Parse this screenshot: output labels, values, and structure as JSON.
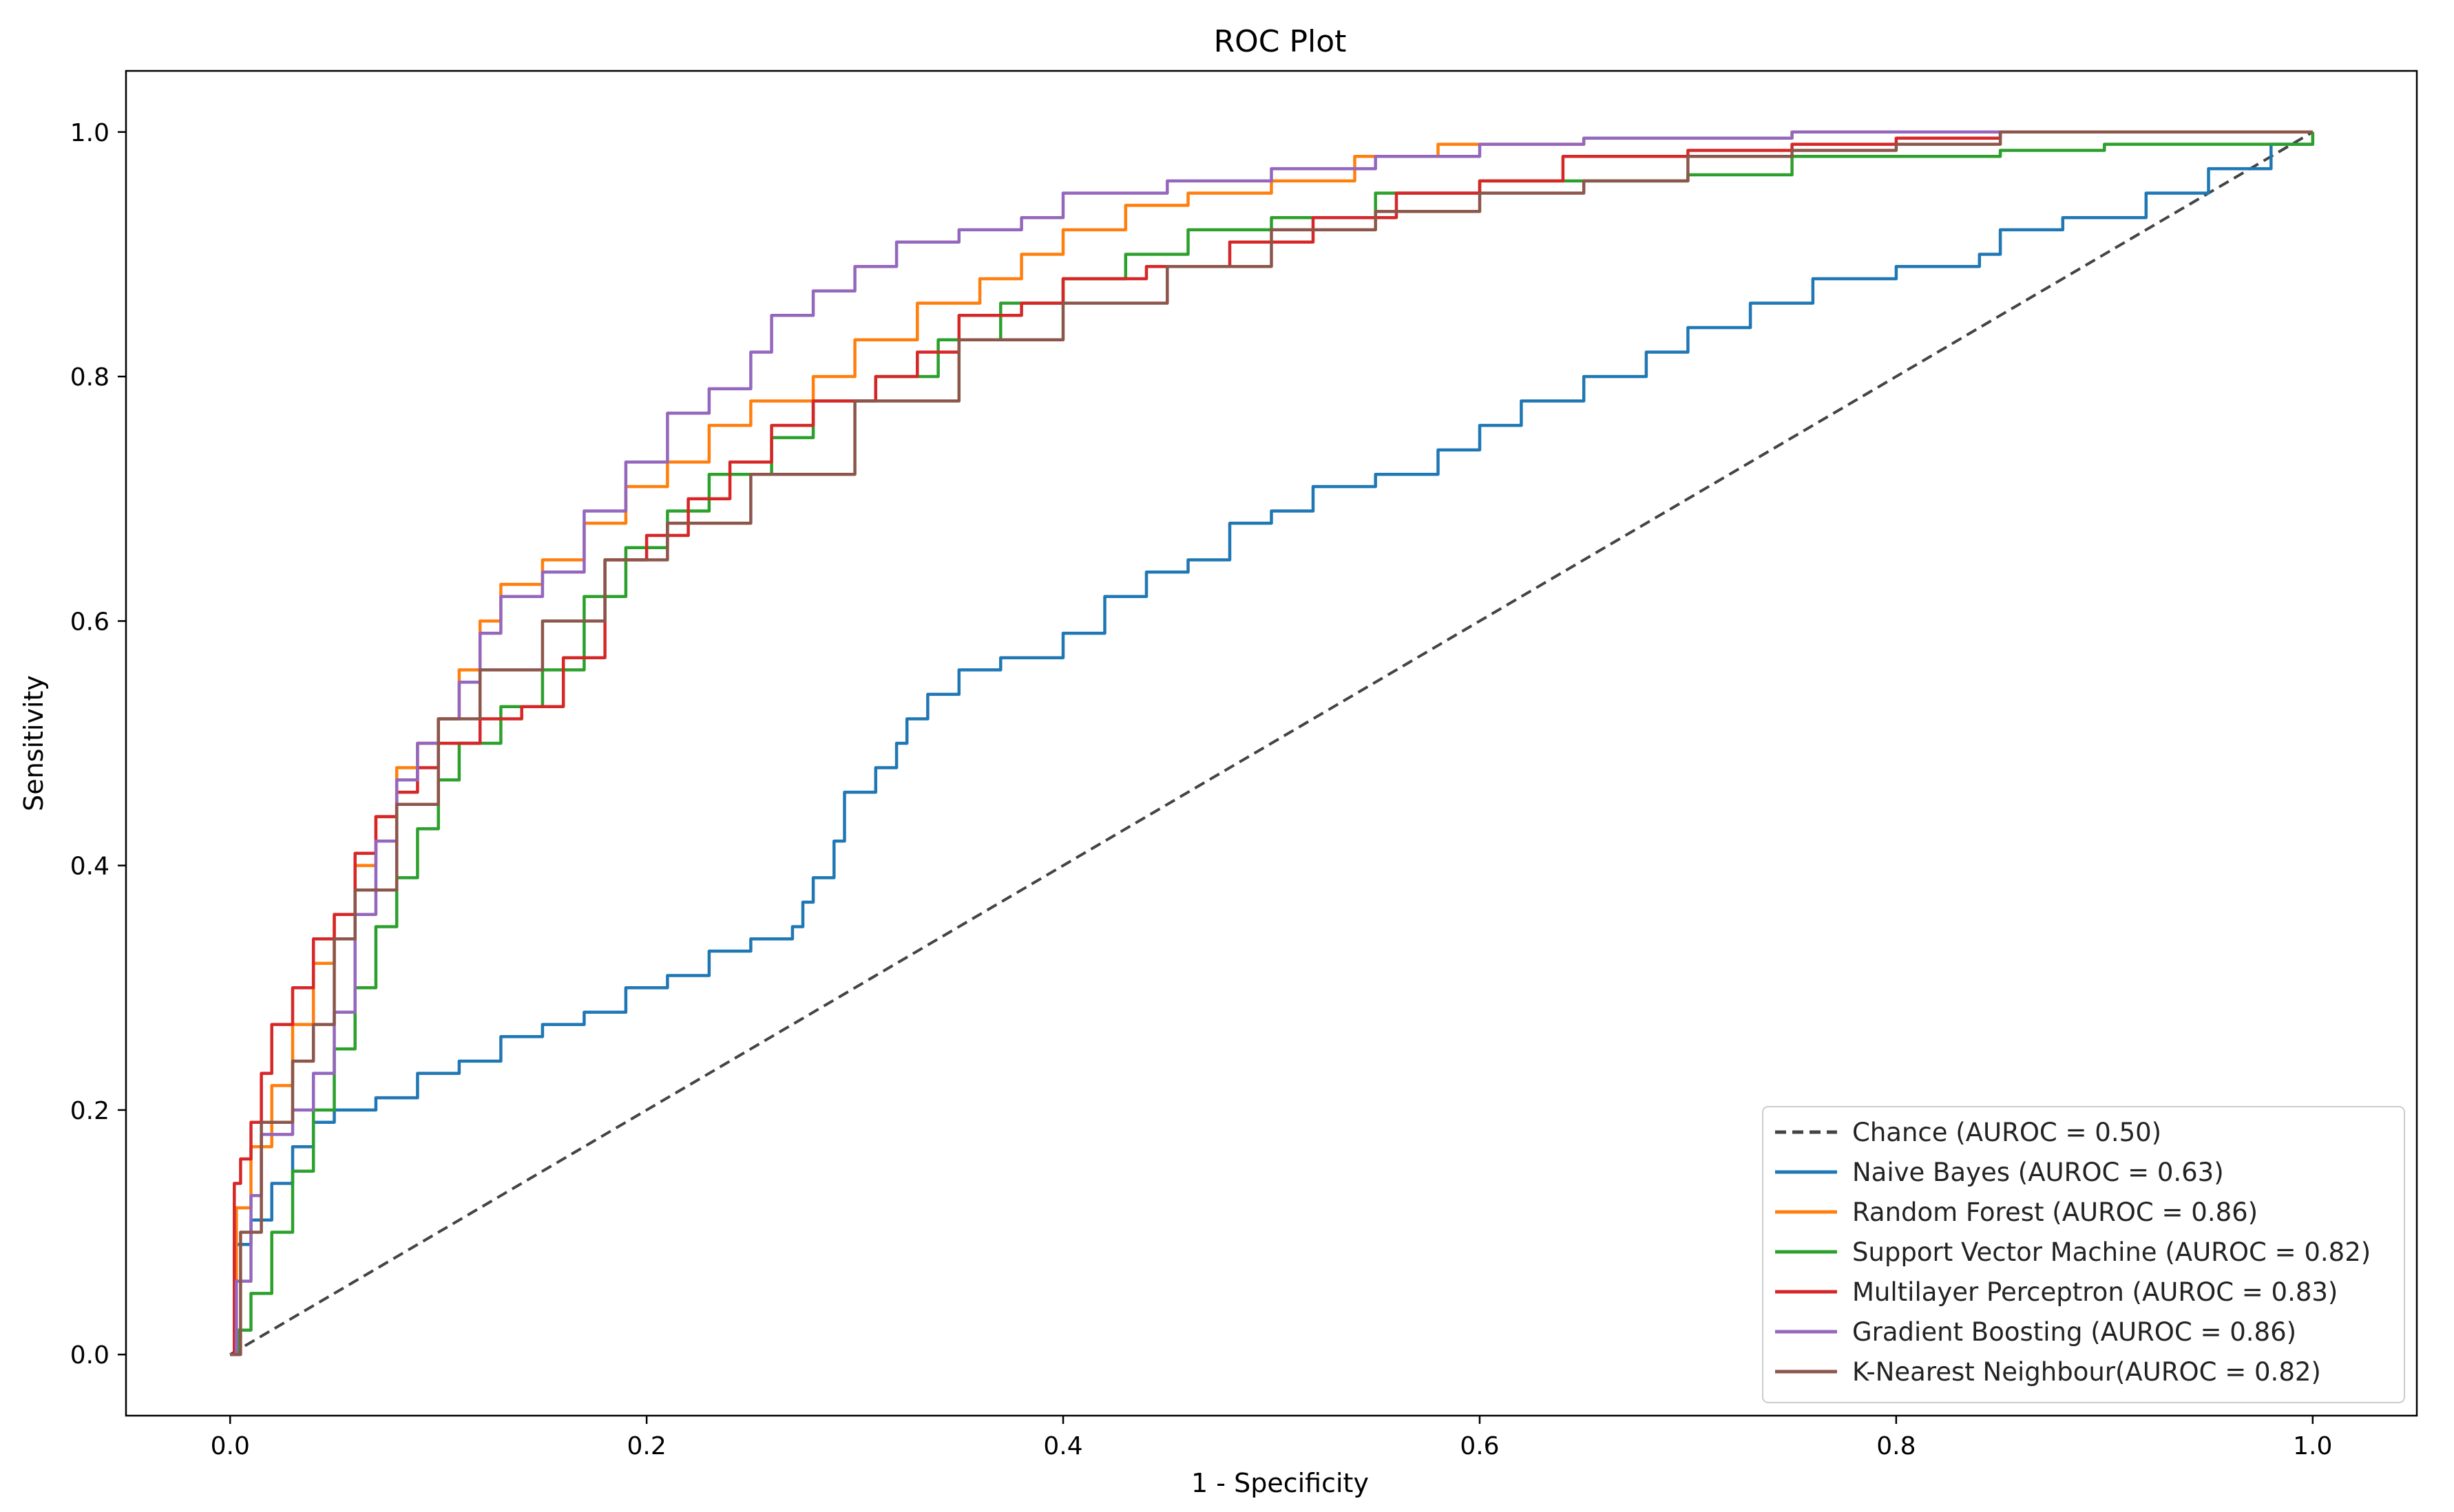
{
  "chart_data": {
    "type": "line",
    "title": "ROC Plot",
    "xlabel": "1 - Specificity",
    "ylabel": "Sensitivity",
    "xlim": [
      -0.05,
      1.05
    ],
    "ylim": [
      -0.05,
      1.05
    ],
    "xticks": [
      0.0,
      0.2,
      0.4,
      0.6,
      0.8,
      1.0
    ],
    "yticks": [
      0.0,
      0.2,
      0.4,
      0.6,
      0.8,
      1.0
    ],
    "xtick_labels": [
      "0.0",
      "0.2",
      "0.4",
      "0.6",
      "0.8",
      "1.0"
    ],
    "ytick_labels": [
      "0.0",
      "0.2",
      "0.4",
      "0.6",
      "0.8",
      "1.0"
    ],
    "legend_position": "lower-right",
    "grid": false,
    "series": [
      {
        "name": "Chance (AUROC = 0.50)",
        "color": "#444444",
        "dashed": true,
        "points": [
          [
            0,
            0
          ],
          [
            1,
            1
          ]
        ]
      },
      {
        "name": "Naive Bayes (AUROC = 0.63)",
        "color": "#1f77b4",
        "dashed": false,
        "points": [
          [
            0,
            0
          ],
          [
            0.002,
            0.09
          ],
          [
            0.01,
            0.11
          ],
          [
            0.02,
            0.14
          ],
          [
            0.03,
            0.17
          ],
          [
            0.04,
            0.19
          ],
          [
            0.05,
            0.2
          ],
          [
            0.07,
            0.21
          ],
          [
            0.09,
            0.23
          ],
          [
            0.11,
            0.24
          ],
          [
            0.13,
            0.26
          ],
          [
            0.15,
            0.27
          ],
          [
            0.17,
            0.28
          ],
          [
            0.19,
            0.3
          ],
          [
            0.21,
            0.31
          ],
          [
            0.23,
            0.33
          ],
          [
            0.25,
            0.34
          ],
          [
            0.27,
            0.35
          ],
          [
            0.275,
            0.37
          ],
          [
            0.28,
            0.39
          ],
          [
            0.29,
            0.42
          ],
          [
            0.295,
            0.46
          ],
          [
            0.31,
            0.48
          ],
          [
            0.32,
            0.5
          ],
          [
            0.325,
            0.52
          ],
          [
            0.335,
            0.54
          ],
          [
            0.35,
            0.56
          ],
          [
            0.37,
            0.57
          ],
          [
            0.4,
            0.59
          ],
          [
            0.42,
            0.62
          ],
          [
            0.44,
            0.64
          ],
          [
            0.46,
            0.65
          ],
          [
            0.48,
            0.68
          ],
          [
            0.5,
            0.69
          ],
          [
            0.52,
            0.71
          ],
          [
            0.55,
            0.72
          ],
          [
            0.58,
            0.74
          ],
          [
            0.6,
            0.76
          ],
          [
            0.62,
            0.78
          ],
          [
            0.65,
            0.8
          ],
          [
            0.68,
            0.82
          ],
          [
            0.7,
            0.84
          ],
          [
            0.73,
            0.86
          ],
          [
            0.76,
            0.88
          ],
          [
            0.8,
            0.89
          ],
          [
            0.84,
            0.9
          ],
          [
            0.85,
            0.92
          ],
          [
            0.88,
            0.93
          ],
          [
            0.92,
            0.95
          ],
          [
            0.95,
            0.97
          ],
          [
            0.98,
            0.99
          ],
          [
            1,
            1
          ]
        ]
      },
      {
        "name": "Random Forest (AUROC = 0.86)",
        "color": "#ff7f0e",
        "dashed": false,
        "points": [
          [
            0,
            0
          ],
          [
            0.003,
            0.12
          ],
          [
            0.01,
            0.17
          ],
          [
            0.02,
            0.22
          ],
          [
            0.03,
            0.27
          ],
          [
            0.04,
            0.32
          ],
          [
            0.05,
            0.36
          ],
          [
            0.06,
            0.4
          ],
          [
            0.07,
            0.44
          ],
          [
            0.08,
            0.48
          ],
          [
            0.09,
            0.5
          ],
          [
            0.1,
            0.52
          ],
          [
            0.11,
            0.56
          ],
          [
            0.12,
            0.6
          ],
          [
            0.13,
            0.63
          ],
          [
            0.15,
            0.65
          ],
          [
            0.17,
            0.68
          ],
          [
            0.19,
            0.71
          ],
          [
            0.21,
            0.73
          ],
          [
            0.23,
            0.76
          ],
          [
            0.25,
            0.78
          ],
          [
            0.28,
            0.8
          ],
          [
            0.3,
            0.83
          ],
          [
            0.33,
            0.86
          ],
          [
            0.36,
            0.88
          ],
          [
            0.38,
            0.9
          ],
          [
            0.4,
            0.92
          ],
          [
            0.43,
            0.94
          ],
          [
            0.46,
            0.95
          ],
          [
            0.5,
            0.96
          ],
          [
            0.54,
            0.98
          ],
          [
            0.58,
            0.99
          ],
          [
            0.65,
            0.995
          ],
          [
            0.75,
            1
          ],
          [
            1,
            1
          ]
        ]
      },
      {
        "name": "Support Vector Machine (AUROC = 0.82)",
        "color": "#2ca02c",
        "dashed": false,
        "points": [
          [
            0,
            0
          ],
          [
            0.004,
            0.02
          ],
          [
            0.01,
            0.05
          ],
          [
            0.02,
            0.1
          ],
          [
            0.03,
            0.15
          ],
          [
            0.04,
            0.2
          ],
          [
            0.05,
            0.25
          ],
          [
            0.06,
            0.3
          ],
          [
            0.07,
            0.35
          ],
          [
            0.08,
            0.39
          ],
          [
            0.09,
            0.43
          ],
          [
            0.1,
            0.47
          ],
          [
            0.11,
            0.5
          ],
          [
            0.13,
            0.53
          ],
          [
            0.15,
            0.56
          ],
          [
            0.17,
            0.62
          ],
          [
            0.19,
            0.66
          ],
          [
            0.21,
            0.69
          ],
          [
            0.23,
            0.72
          ],
          [
            0.26,
            0.75
          ],
          [
            0.28,
            0.78
          ],
          [
            0.31,
            0.8
          ],
          [
            0.34,
            0.83
          ],
          [
            0.37,
            0.86
          ],
          [
            0.4,
            0.88
          ],
          [
            0.43,
            0.9
          ],
          [
            0.46,
            0.92
          ],
          [
            0.5,
            0.93
          ],
          [
            0.55,
            0.95
          ],
          [
            0.6,
            0.96
          ],
          [
            0.7,
            0.965
          ],
          [
            0.75,
            0.98
          ],
          [
            0.8,
            0.98
          ],
          [
            0.85,
            0.985
          ],
          [
            0.9,
            0.99
          ],
          [
            1,
            1
          ]
        ]
      },
      {
        "name": "Multilayer Perceptron (AUROC = 0.83)",
        "color": "#d62728",
        "dashed": false,
        "points": [
          [
            0,
            0
          ],
          [
            0.002,
            0.14
          ],
          [
            0.005,
            0.16
          ],
          [
            0.01,
            0.19
          ],
          [
            0.015,
            0.23
          ],
          [
            0.02,
            0.27
          ],
          [
            0.03,
            0.3
          ],
          [
            0.04,
            0.34
          ],
          [
            0.05,
            0.36
          ],
          [
            0.06,
            0.41
          ],
          [
            0.07,
            0.44
          ],
          [
            0.08,
            0.46
          ],
          [
            0.09,
            0.48
          ],
          [
            0.1,
            0.5
          ],
          [
            0.12,
            0.52
          ],
          [
            0.14,
            0.53
          ],
          [
            0.16,
            0.57
          ],
          [
            0.18,
            0.65
          ],
          [
            0.2,
            0.67
          ],
          [
            0.22,
            0.7
          ],
          [
            0.24,
            0.73
          ],
          [
            0.26,
            0.76
          ],
          [
            0.28,
            0.78
          ],
          [
            0.31,
            0.8
          ],
          [
            0.33,
            0.82
          ],
          [
            0.35,
            0.85
          ],
          [
            0.38,
            0.86
          ],
          [
            0.4,
            0.88
          ],
          [
            0.44,
            0.89
          ],
          [
            0.48,
            0.91
          ],
          [
            0.52,
            0.93
          ],
          [
            0.56,
            0.95
          ],
          [
            0.6,
            0.96
          ],
          [
            0.64,
            0.98
          ],
          [
            0.7,
            0.985
          ],
          [
            0.75,
            0.99
          ],
          [
            0.8,
            0.995
          ],
          [
            0.85,
            1
          ],
          [
            1,
            1
          ]
        ]
      },
      {
        "name": "Gradient Boosting (AUROC = 0.86)",
        "color": "#9467bd",
        "dashed": false,
        "points": [
          [
            0,
            0
          ],
          [
            0.003,
            0.06
          ],
          [
            0.01,
            0.13
          ],
          [
            0.015,
            0.18
          ],
          [
            0.03,
            0.2
          ],
          [
            0.04,
            0.23
          ],
          [
            0.05,
            0.28
          ],
          [
            0.06,
            0.36
          ],
          [
            0.07,
            0.42
          ],
          [
            0.08,
            0.47
          ],
          [
            0.09,
            0.5
          ],
          [
            0.1,
            0.52
          ],
          [
            0.11,
            0.55
          ],
          [
            0.12,
            0.59
          ],
          [
            0.13,
            0.62
          ],
          [
            0.15,
            0.64
          ],
          [
            0.17,
            0.69
          ],
          [
            0.19,
            0.73
          ],
          [
            0.21,
            0.77
          ],
          [
            0.23,
            0.79
          ],
          [
            0.25,
            0.82
          ],
          [
            0.26,
            0.85
          ],
          [
            0.28,
            0.87
          ],
          [
            0.3,
            0.89
          ],
          [
            0.32,
            0.91
          ],
          [
            0.35,
            0.92
          ],
          [
            0.38,
            0.93
          ],
          [
            0.4,
            0.95
          ],
          [
            0.45,
            0.96
          ],
          [
            0.5,
            0.97
          ],
          [
            0.55,
            0.98
          ],
          [
            0.6,
            0.99
          ],
          [
            0.65,
            0.995
          ],
          [
            0.75,
            1
          ],
          [
            1,
            1
          ]
        ]
      },
      {
        "name": "K-Nearest Neighbour(AUROC = 0.82)",
        "color": "#8c564b",
        "dashed": false,
        "points": [
          [
            0,
            0
          ],
          [
            0.005,
            0.1
          ],
          [
            0.015,
            0.19
          ],
          [
            0.03,
            0.24
          ],
          [
            0.04,
            0.27
          ],
          [
            0.05,
            0.34
          ],
          [
            0.06,
            0.38
          ],
          [
            0.08,
            0.45
          ],
          [
            0.1,
            0.52
          ],
          [
            0.12,
            0.56
          ],
          [
            0.15,
            0.6
          ],
          [
            0.18,
            0.65
          ],
          [
            0.21,
            0.68
          ],
          [
            0.25,
            0.72
          ],
          [
            0.3,
            0.78
          ],
          [
            0.35,
            0.83
          ],
          [
            0.4,
            0.86
          ],
          [
            0.45,
            0.89
          ],
          [
            0.5,
            0.92
          ],
          [
            0.55,
            0.935
          ],
          [
            0.6,
            0.95
          ],
          [
            0.65,
            0.96
          ],
          [
            0.7,
            0.98
          ],
          [
            0.75,
            0.985
          ],
          [
            0.8,
            0.99
          ],
          [
            0.85,
            1
          ],
          [
            1,
            1
          ]
        ]
      }
    ]
  }
}
